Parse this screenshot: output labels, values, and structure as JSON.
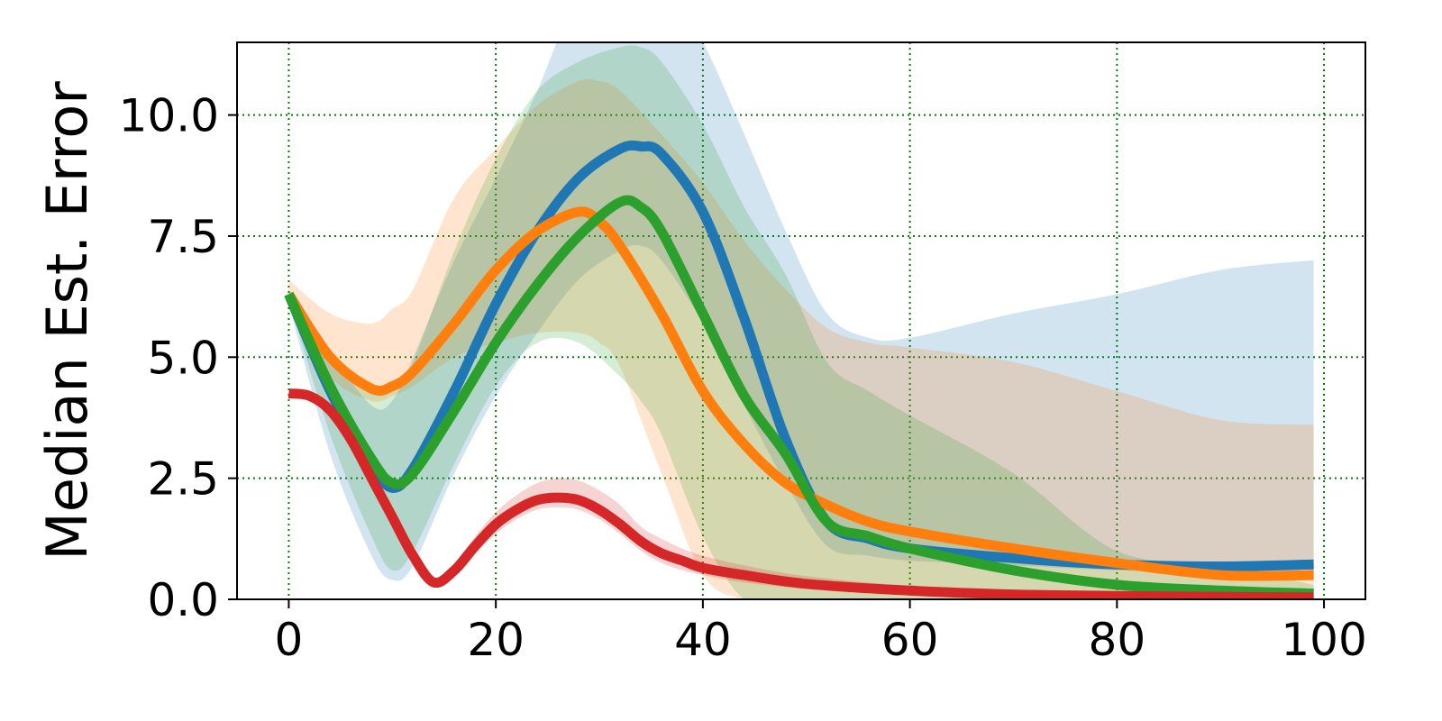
{
  "chart_data": {
    "type": "line",
    "title": "",
    "xlabel": "",
    "ylabel": "Median Est. Error",
    "xlim": [
      -5,
      104
    ],
    "ylim": [
      0,
      11.5
    ],
    "xticks": [
      0,
      20,
      40,
      60,
      80,
      100
    ],
    "yticks": [
      0.0,
      2.5,
      5.0,
      7.5,
      10.0
    ],
    "xtick_labels": [
      "0",
      "20",
      "40",
      "60",
      "80",
      "100"
    ],
    "ytick_labels": [
      "0.0",
      "2.5",
      "5.0",
      "7.5",
      "10.0"
    ],
    "grid": true,
    "grid_color": "#007f00",
    "legend": "none",
    "series": [
      {
        "color": "#1f77b4",
        "x": [
          0,
          4,
          8,
          10,
          12,
          16,
          20,
          24,
          28,
          32,
          34,
          36,
          40,
          44,
          48,
          52,
          56,
          60,
          70,
          80,
          90,
          99
        ],
        "values": [
          6.3,
          4.3,
          2.8,
          2.3,
          2.7,
          4.3,
          6.1,
          7.6,
          8.7,
          9.3,
          9.35,
          9.2,
          8.0,
          5.8,
          3.3,
          1.6,
          1.25,
          1.05,
          0.85,
          0.72,
          0.68,
          0.72
        ],
        "lower": [
          6.1,
          3.0,
          0.9,
          0.4,
          0.7,
          2.6,
          4.2,
          5.5,
          6.6,
          7.2,
          7.3,
          7.0,
          5.7,
          4.0,
          2.4,
          1.1,
          0.9,
          0.8,
          0.7,
          0.6,
          0.55,
          0.55
        ],
        "upper": [
          6.4,
          5.1,
          4.0,
          4.1,
          5.0,
          7.0,
          8.7,
          10.5,
          12.5,
          13.2,
          13.2,
          12.8,
          11.5,
          9.6,
          7.6,
          5.9,
          5.4,
          5.4,
          5.9,
          6.3,
          6.8,
          7.0
        ]
      },
      {
        "color": "#ff7f0e",
        "x": [
          0,
          4,
          8,
          10,
          12,
          16,
          20,
          24,
          28,
          30,
          32,
          36,
          40,
          44,
          48,
          52,
          56,
          60,
          70,
          80,
          90,
          99
        ],
        "values": [
          6.3,
          5.0,
          4.35,
          4.4,
          4.7,
          5.7,
          6.8,
          7.6,
          8.0,
          7.8,
          7.3,
          5.9,
          4.3,
          3.2,
          2.4,
          1.95,
          1.6,
          1.4,
          1.05,
          0.75,
          0.5,
          0.5
        ],
        "lower": [
          6.1,
          4.6,
          4.1,
          4.2,
          4.4,
          5.0,
          5.3,
          5.5,
          5.5,
          5.3,
          4.8,
          2.6,
          0.5,
          0.0,
          0.0,
          0.0,
          0.0,
          0.0,
          0.0,
          0.0,
          0.0,
          0.0
        ],
        "upper": [
          6.6,
          5.9,
          5.7,
          6.0,
          6.4,
          8.3,
          9.3,
          10.2,
          10.7,
          10.7,
          10.5,
          9.6,
          8.6,
          7.4,
          6.4,
          5.6,
          5.3,
          5.2,
          4.9,
          4.3,
          3.7,
          3.6
        ]
      },
      {
        "color": "#2ca02c",
        "x": [
          0,
          4,
          8,
          10,
          12,
          16,
          20,
          24,
          28,
          32,
          34,
          36,
          40,
          44,
          48,
          52,
          56,
          60,
          70,
          80,
          90,
          99
        ],
        "values": [
          6.3,
          4.4,
          2.9,
          2.4,
          2.6,
          3.9,
          5.3,
          6.5,
          7.5,
          8.2,
          8.1,
          7.6,
          5.9,
          4.2,
          3.0,
          1.6,
          1.3,
          1.05,
          0.6,
          0.3,
          0.18,
          0.12
        ],
        "lower": [
          6.2,
          3.4,
          1.3,
          0.6,
          1.0,
          2.8,
          4.4,
          5.3,
          5.3,
          4.6,
          4.1,
          3.4,
          1.3,
          0.0,
          0.0,
          0.0,
          0.0,
          0.0,
          0.0,
          0.0,
          0.0,
          0.0
        ],
        "upper": [
          6.4,
          5.0,
          4.3,
          4.3,
          4.9,
          7.2,
          9.1,
          10.5,
          11.1,
          11.4,
          11.4,
          11.1,
          9.8,
          8.1,
          6.7,
          4.9,
          4.3,
          3.8,
          2.6,
          1.0,
          0.7,
          0.3
        ]
      },
      {
        "color": "#d62728",
        "x": [
          0,
          2,
          4,
          6,
          8,
          10,
          12,
          14,
          16,
          18,
          20,
          22,
          24,
          26,
          28,
          30,
          32,
          34,
          36,
          38,
          40,
          44,
          50,
          60,
          70,
          80,
          99
        ],
        "values": [
          4.25,
          4.2,
          3.9,
          3.3,
          2.5,
          1.7,
          0.9,
          0.35,
          0.6,
          1.1,
          1.55,
          1.85,
          2.05,
          2.1,
          2.05,
          1.85,
          1.55,
          1.2,
          0.95,
          0.8,
          0.65,
          0.5,
          0.32,
          0.18,
          0.1,
          0.07,
          0.04
        ],
        "lower": [
          4.2,
          4.1,
          3.8,
          3.2,
          2.4,
          1.6,
          0.8,
          0.3,
          0.5,
          0.95,
          1.35,
          1.65,
          1.85,
          1.9,
          1.85,
          1.65,
          1.35,
          1.0,
          0.75,
          0.6,
          0.5,
          0.35,
          0.22,
          0.12,
          0.05,
          0.03,
          0.0
        ],
        "upper": [
          4.3,
          4.3,
          4.0,
          3.4,
          2.6,
          1.8,
          1.0,
          0.45,
          0.75,
          1.3,
          1.8,
          2.15,
          2.4,
          2.5,
          2.45,
          2.25,
          1.95,
          1.5,
          1.25,
          1.05,
          0.9,
          0.7,
          0.48,
          0.28,
          0.18,
          0.12,
          0.08
        ]
      }
    ]
  }
}
